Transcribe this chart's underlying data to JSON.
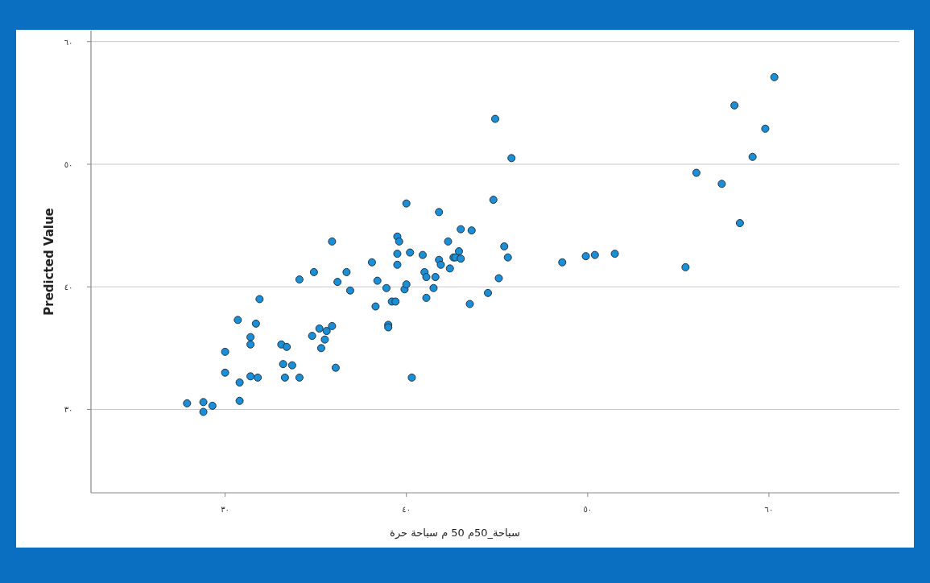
{
  "chart_data": {
    "type": "scatter",
    "xlabel": "سباحة_50م      50 م سباحة حرة",
    "ylabel": "Predicted Value",
    "xlim": [
      22.6,
      67.2
    ],
    "ylim": [
      23.2,
      60.9
    ],
    "xticks": [
      {
        "value": 30,
        "label": "٣٠"
      },
      {
        "value": 40,
        "label": "٤٠"
      },
      {
        "value": 50,
        "label": "٥٠"
      },
      {
        "value": 60,
        "label": "٦٠"
      }
    ],
    "yticks": [
      {
        "value": 30,
        "label": "٣٠"
      },
      {
        "value": 40,
        "label": "٤٠"
      },
      {
        "value": 50,
        "label": "٥٠"
      },
      {
        "value": 60,
        "label": "٦٠"
      }
    ],
    "grid": "y",
    "marker": "circle",
    "series": [
      {
        "color": "#1a8fd8",
        "x": [
          27.9,
          28.8,
          29.3,
          28.8,
          30.8,
          30.0,
          30.0,
          30.8,
          30.7,
          31.4,
          31.4,
          31.7,
          31.9,
          31.4,
          31.8,
          33.1,
          33.4,
          33.2,
          33.7,
          33.3,
          34.1,
          34.1,
          34.8,
          34.9,
          35.2,
          35.5,
          35.3,
          35.6,
          35.9,
          35.9,
          36.1,
          36.2,
          36.7,
          36.9,
          38.1,
          38.3,
          38.4,
          38.9,
          39.0,
          39.0,
          39.2,
          39.4,
          39.5,
          39.5,
          39.5,
          39.6,
          40.0,
          39.9,
          40.0,
          40.2,
          40.3,
          40.9,
          41.0,
          41.1,
          41.1,
          41.5,
          41.6,
          41.8,
          41.8,
          41.9,
          42.3,
          42.4,
          42.6,
          42.7,
          42.9,
          43.0,
          43.0,
          43.6,
          43.5,
          44.5,
          44.8,
          44.9,
          45.1,
          45.4,
          45.6,
          45.8,
          48.6,
          49.9,
          50.4,
          51.5,
          55.4,
          56.0,
          57.4,
          58.1,
          58.4,
          59.1,
          59.8,
          60.3
        ],
        "values": [
          30.5,
          30.6,
          30.3,
          29.8,
          30.7,
          33.0,
          34.7,
          32.2,
          37.3,
          35.9,
          35.3,
          37.0,
          39.0,
          32.7,
          32.6,
          35.3,
          35.1,
          33.7,
          33.6,
          32.6,
          32.6,
          40.6,
          36.0,
          41.2,
          36.6,
          35.7,
          35.0,
          36.4,
          36.8,
          43.7,
          33.4,
          40.4,
          41.2,
          39.7,
          42.0,
          38.4,
          40.5,
          39.9,
          36.9,
          36.7,
          38.8,
          38.8,
          42.7,
          41.8,
          44.1,
          43.7,
          46.8,
          39.8,
          40.2,
          42.8,
          32.6,
          42.6,
          41.2,
          40.8,
          39.1,
          39.9,
          40.8,
          46.1,
          42.2,
          41.8,
          43.7,
          41.5,
          42.4,
          42.4,
          42.9,
          44.7,
          42.3,
          44.6,
          38.6,
          39.5,
          47.1,
          53.7,
          40.7,
          43.3,
          42.4,
          50.5,
          42.0,
          42.5,
          42.6,
          42.7,
          41.6,
          49.3,
          48.4,
          54.8,
          45.2,
          50.6,
          52.9,
          57.1
        ]
      }
    ]
  }
}
